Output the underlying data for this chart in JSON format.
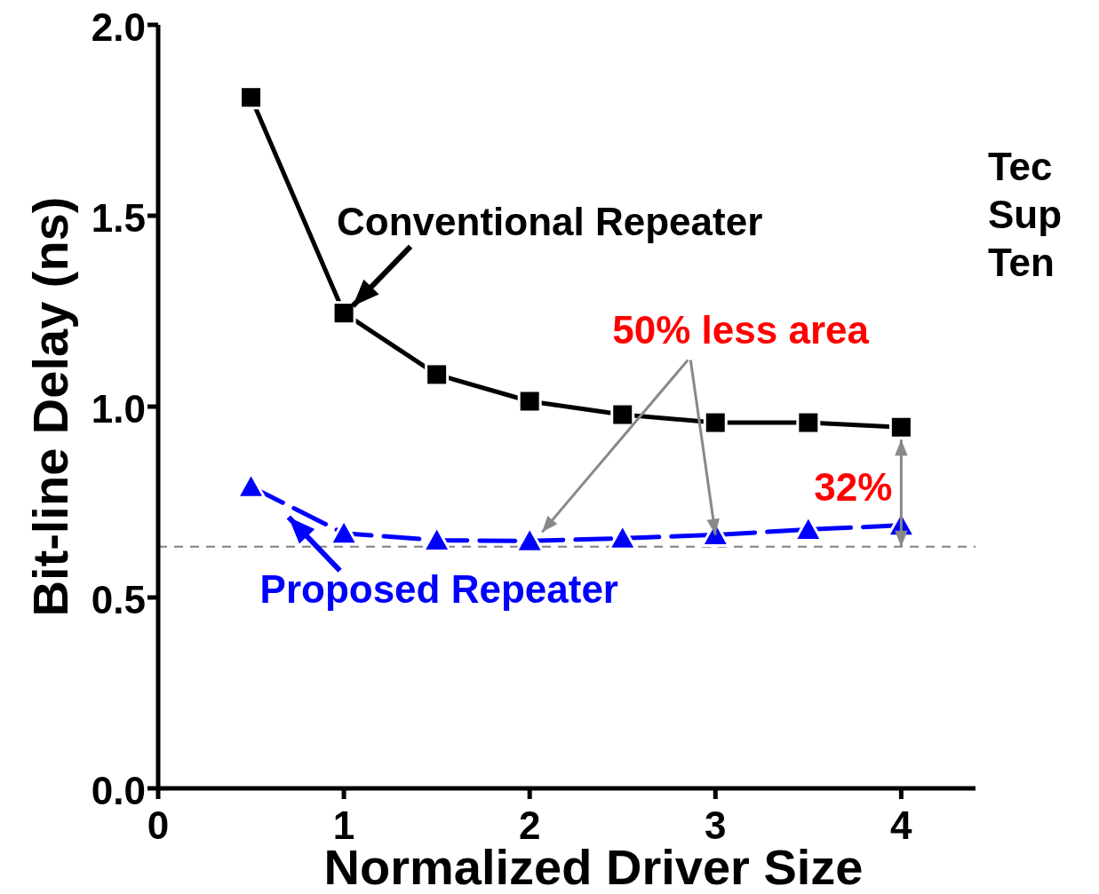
{
  "chart_data": {
    "type": "line",
    "xlabel": "Normalized Driver Size",
    "ylabel": "Bit-line Delay (ns)",
    "x": [
      0.5,
      1,
      1.5,
      2,
      2.5,
      3,
      3.5,
      4
    ],
    "series": [
      {
        "name": "Conventional Repeater",
        "color": "#000000",
        "marker": "square",
        "line_style": "solid",
        "values": [
          1.81,
          1.245,
          1.084,
          1.014,
          0.979,
          0.958,
          0.958,
          0.946
        ]
      },
      {
        "name": "Proposed Repeater",
        "color": "#0000ff",
        "marker": "triangle",
        "line_style": "dashed",
        "values": [
          0.79,
          0.668,
          0.65,
          0.648,
          0.655,
          0.664,
          0.678,
          0.689
        ]
      }
    ],
    "xlim": [
      0,
      4.4
    ],
    "ylim": [
      0,
      2
    ],
    "xticks": [
      0,
      1,
      2,
      3,
      4
    ],
    "yticks": [
      {
        "value": 0,
        "label": "0.0"
      },
      {
        "value": 0.5,
        "label": "0.5"
      },
      {
        "value": 1,
        "label": "1.0"
      },
      {
        "value": 1.5,
        "label": "1.5"
      },
      {
        "value": 2,
        "label": "2.0"
      }
    ],
    "ref_lines": [
      {
        "axis": "y",
        "value": 0.633,
        "color": "#808080",
        "line_style": "dashed"
      }
    ],
    "annotations": [
      {
        "text": "50% less area",
        "x": 3,
        "y": 0.664
      },
      "32%",
      "Tec",
      "Sup",
      "Ten"
    ]
  }
}
